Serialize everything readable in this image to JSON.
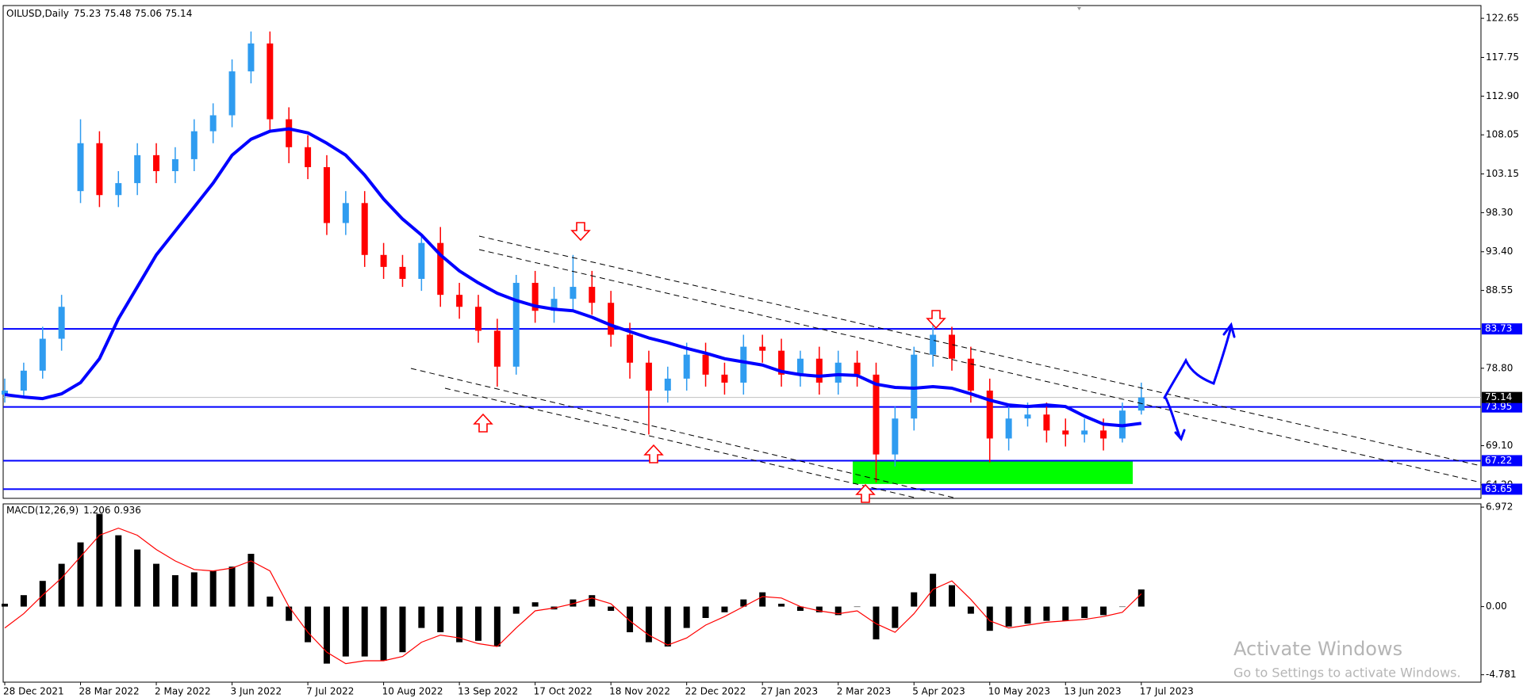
{
  "chart_data": [
    {
      "type": "candlestick",
      "title": "OILUSD,Daily",
      "last_bar": {
        "open": 75.23,
        "high": 75.48,
        "low": 75.06,
        "close": 75.14
      },
      "categories": [
        "28 Dec 2021",
        null,
        null,
        null,
        "28 Mar 2022",
        null,
        null,
        null,
        "2 May 2022",
        null,
        null,
        null,
        "3 Jun 2022",
        null,
        null,
        null,
        "7 Jul 2022",
        null,
        null,
        null,
        "10 Aug 2022",
        null,
        null,
        null,
        "13 Sep 2022",
        null,
        null,
        null,
        "17 Oct 2022",
        null,
        null,
        null,
        "18 Nov 2022",
        null,
        null,
        null,
        "22 Dec 2022",
        null,
        null,
        null,
        "27 Jan 2023",
        null,
        null,
        null,
        "2 Mar 2023",
        null,
        null,
        null,
        "5 Apr 2023",
        null,
        null,
        null,
        "10 May 2023",
        null,
        null,
        null,
        "13 Jun 2023",
        null,
        null,
        null,
        "17 Jul 2023"
      ],
      "open": [
        75.5,
        76.0,
        78.5,
        82.5,
        101.0,
        107.0,
        100.5,
        102.0,
        105.5,
        103.5,
        105.0,
        108.5,
        110.5,
        116.0,
        119.5,
        110.0,
        106.5,
        104.0,
        97.0,
        99.5,
        93.0,
        91.5,
        90.0,
        94.5,
        88.0,
        86.5,
        83.5,
        79.0,
        89.5,
        86.0,
        87.5,
        89.0,
        87.0,
        83.0,
        79.5,
        76.0,
        77.5,
        80.5,
        78.0,
        77.0,
        81.5,
        81.0,
        78.0,
        80.0,
        77.0,
        79.5,
        78.0,
        68.0,
        72.5,
        80.5,
        83.0,
        80.0,
        76.0,
        70.0,
        72.5,
        73.0,
        71.0,
        70.5,
        71.0,
        70.0,
        73.5
      ],
      "high": [
        77.5,
        79.5,
        84.0,
        88.0,
        110.0,
        108.5,
        103.5,
        107.0,
        107.0,
        106.5,
        110.0,
        112.0,
        117.5,
        121.0,
        121.0,
        111.5,
        108.0,
        105.5,
        101.0,
        101.0,
        94.5,
        93.0,
        95.5,
        96.5,
        89.5,
        88.0,
        85.0,
        90.5,
        91.0,
        89.0,
        93.0,
        91.0,
        88.5,
        84.5,
        81.0,
        79.0,
        82.0,
        82.0,
        79.5,
        83.0,
        83.0,
        82.5,
        81.0,
        81.5,
        81.0,
        81.0,
        79.5,
        74.0,
        81.5,
        84.5,
        84.0,
        81.5,
        77.5,
        74.0,
        74.5,
        74.5,
        72.5,
        72.5,
        72.5,
        74.5,
        77.0
      ],
      "low": [
        74.5,
        75.0,
        77.5,
        81.0,
        99.5,
        99.0,
        99.0,
        100.5,
        102.0,
        102.0,
        103.5,
        107.0,
        109.0,
        114.5,
        108.5,
        104.5,
        102.5,
        95.5,
        95.5,
        91.5,
        90.0,
        89.0,
        88.5,
        86.5,
        85.0,
        82.0,
        76.5,
        78.0,
        84.5,
        84.5,
        86.0,
        85.5,
        81.5,
        77.5,
        70.5,
        74.5,
        76.0,
        76.5,
        75.5,
        75.5,
        79.5,
        76.5,
        76.5,
        75.5,
        75.5,
        76.5,
        64.5,
        66.5,
        71.0,
        79.0,
        78.5,
        74.5,
        67.0,
        68.5,
        71.5,
        69.5,
        69.0,
        69.5,
        68.5,
        69.5,
        73.0
      ],
      "close": [
        76.0,
        78.5,
        82.5,
        86.5,
        107.0,
        100.5,
        102.0,
        105.5,
        103.5,
        105.0,
        108.5,
        110.5,
        116.0,
        119.5,
        110.0,
        106.5,
        104.0,
        97.0,
        99.5,
        93.0,
        91.5,
        90.0,
        94.5,
        88.0,
        86.5,
        83.5,
        79.0,
        89.5,
        86.0,
        87.5,
        89.0,
        87.0,
        83.0,
        79.5,
        76.0,
        77.5,
        80.5,
        78.0,
        77.0,
        81.5,
        81.0,
        78.0,
        80.0,
        77.0,
        79.5,
        78.0,
        68.0,
        72.5,
        80.5,
        83.0,
        80.0,
        76.0,
        70.0,
        72.5,
        73.0,
        71.0,
        70.5,
        71.0,
        70.0,
        73.5,
        75.14
      ],
      "up_color": "#2f9cf0",
      "down_color": "#ff0000",
      "ma": {
        "color": "#0000ff",
        "values": [
          75.5,
          75.2,
          75.0,
          75.6,
          77.0,
          80.0,
          85.0,
          89.0,
          93.0,
          96.0,
          99.0,
          102.0,
          105.5,
          107.5,
          108.5,
          108.8,
          108.3,
          107.0,
          105.5,
          103.0,
          100.0,
          97.5,
          95.5,
          93.0,
          91.0,
          89.5,
          88.2,
          87.3,
          86.6,
          86.2,
          86.0,
          85.2,
          84.2,
          83.4,
          82.6,
          82.0,
          81.3,
          80.7,
          80.0,
          79.6,
          79.2,
          78.4,
          78.0,
          77.8,
          78.0,
          77.9,
          76.8,
          76.4,
          76.3,
          76.5,
          76.3,
          75.6,
          74.8,
          74.2,
          74.0,
          74.2,
          74.0,
          72.8,
          71.8,
          71.6,
          71.9
        ]
      },
      "levels": [
        {
          "value": 83.73,
          "color": "#0000ff"
        },
        {
          "value": 73.95,
          "color": "#0000ff"
        },
        {
          "value": 67.22,
          "color": "#0000ff"
        },
        {
          "value": 63.65,
          "color": "#0000ff"
        }
      ],
      "last_price": 75.14,
      "zone": {
        "low": 64.3,
        "high": 67.22,
        "color": "#00ff00"
      },
      "ylim": [
        62.5,
        124.25
      ],
      "yticks": [
        {
          "value": 122.65,
          "label": "122.65"
        },
        {
          "value": 117.75,
          "label": "117.75"
        },
        {
          "value": 112.9,
          "label": "112.90"
        },
        {
          "value": 108.05,
          "label": "108.05"
        },
        {
          "value": 103.15,
          "label": "103.15"
        },
        {
          "value": 98.3,
          "label": "98.30"
        },
        {
          "value": 93.4,
          "label": "93.40"
        },
        {
          "value": 88.55,
          "label": "88.55"
        },
        {
          "value": 78.8,
          "label": "78.80"
        },
        {
          "value": 69.1,
          "label": "69.10"
        },
        {
          "value": 64.2,
          "label": "64.20"
        }
      ]
    },
    {
      "type": "macd",
      "title": "MACD(12,26,9)",
      "macd_value": 1.206,
      "signal_value": 0.936,
      "values": [
        0.2,
        0.8,
        1.8,
        3.0,
        4.5,
        6.5,
        5.0,
        4.0,
        3.0,
        2.2,
        2.4,
        2.5,
        2.8,
        3.7,
        0.7,
        -1.0,
        -2.5,
        -4.0,
        -3.5,
        -3.5,
        -3.8,
        -3.2,
        -1.5,
        -1.8,
        -2.5,
        -2.4,
        -2.8,
        -0.5,
        0.3,
        -0.2,
        0.5,
        0.8,
        -0.3,
        -1.8,
        -2.5,
        -2.8,
        -1.5,
        -0.8,
        -0.4,
        0.5,
        1.0,
        0.2,
        -0.3,
        -0.4,
        -0.6,
        0.0,
        -2.3,
        -1.5,
        1.0,
        2.3,
        1.5,
        -0.5,
        -1.7,
        -1.4,
        -1.2,
        -1.0,
        -1.0,
        -0.8,
        -0.6,
        0.0,
        1.2
      ],
      "signal": [
        -1.5,
        -0.5,
        0.8,
        2.0,
        3.5,
        5.0,
        5.5,
        5.0,
        4.0,
        3.2,
        2.6,
        2.5,
        2.7,
        3.2,
        2.5,
        0.0,
        -1.8,
        -3.2,
        -4.0,
        -3.8,
        -3.8,
        -3.5,
        -2.5,
        -2.0,
        -2.2,
        -2.6,
        -2.8,
        -1.5,
        -0.3,
        -0.1,
        0.2,
        0.6,
        0.2,
        -1.0,
        -2.0,
        -2.7,
        -2.2,
        -1.3,
        -0.7,
        0.0,
        0.7,
        0.6,
        0.0,
        -0.3,
        -0.5,
        -0.3,
        -1.2,
        -1.8,
        -0.5,
        1.2,
        1.8,
        0.5,
        -1.0,
        -1.5,
        -1.3,
        -1.1,
        -1.0,
        -0.9,
        -0.7,
        -0.4,
        0.9
      ],
      "color": "#000000",
      "signal_color": "#ff0000",
      "ylim": [
        -5.3,
        7.2
      ],
      "yticks": [
        6.972,
        {
          "value": 0,
          "label": "0.00"
        },
        -4.781
      ]
    }
  ],
  "watermark": {
    "title": "Activate Windows",
    "subtitle": "Go to Settings to activate Windows."
  }
}
